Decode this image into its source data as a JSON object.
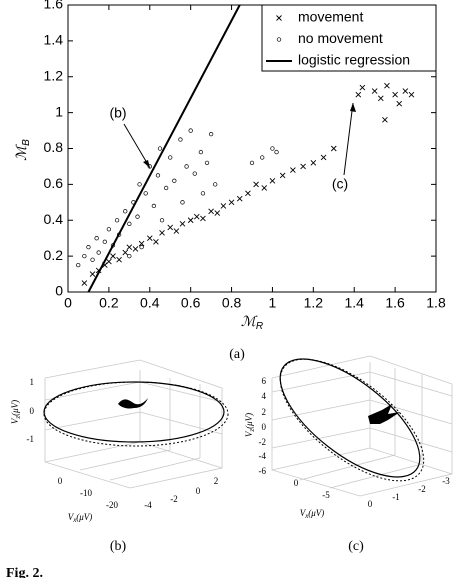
{
  "chart_data": {
    "type": "scatter",
    "x_label": {
      "symbol": "ℳ",
      "subscript": "R"
    },
    "y_label": {
      "symbol": "ℳ",
      "subscript": "B"
    },
    "xlim": [
      0,
      1.8
    ],
    "ylim": [
      0,
      1.6
    ],
    "xticks": [
      0,
      0.2,
      0.4,
      0.6,
      0.8,
      1,
      1.2,
      1.4,
      1.6,
      1.8
    ],
    "yticks": [
      0,
      0.2,
      0.4,
      0.6,
      0.8,
      1,
      1.2,
      1.4,
      1.6
    ],
    "grid": false,
    "legend": "upper right",
    "annotations": [
      "(b)",
      "(c)"
    ],
    "series": [
      {
        "name": "movement",
        "marker": "x",
        "color": "#000000",
        "x": [
          0.08,
          0.12,
          0.15,
          0.18,
          0.2,
          0.22,
          0.25,
          0.28,
          0.3,
          0.33,
          0.36,
          0.4,
          0.43,
          0.46,
          0.5,
          0.53,
          0.56,
          0.6,
          0.63,
          0.66,
          0.7,
          0.73,
          0.76,
          0.8,
          0.84,
          0.88,
          0.92,
          0.96,
          1.0,
          1.05,
          1.1,
          1.15,
          1.2,
          1.25,
          1.3,
          1.42,
          1.44,
          1.5,
          1.53,
          1.56,
          1.6,
          1.62,
          1.65,
          1.68,
          1.55
        ],
        "values": [
          0.05,
          0.1,
          0.12,
          0.15,
          0.17,
          0.2,
          0.18,
          0.22,
          0.25,
          0.24,
          0.27,
          0.3,
          0.28,
          0.33,
          0.36,
          0.34,
          0.38,
          0.4,
          0.42,
          0.41,
          0.45,
          0.44,
          0.48,
          0.5,
          0.52,
          0.55,
          0.6,
          0.58,
          0.62,
          0.65,
          0.68,
          0.7,
          0.72,
          0.75,
          0.8,
          1.1,
          1.14,
          1.12,
          1.08,
          1.15,
          1.1,
          1.05,
          1.12,
          1.1,
          0.96
        ]
      },
      {
        "name": "no movement",
        "marker": "o",
        "color": "#000000",
        "x": [
          0.05,
          0.08,
          0.1,
          0.12,
          0.14,
          0.15,
          0.18,
          0.2,
          0.22,
          0.24,
          0.25,
          0.28,
          0.3,
          0.32,
          0.34,
          0.35,
          0.38,
          0.4,
          0.42,
          0.44,
          0.45,
          0.48,
          0.5,
          0.52,
          0.55,
          0.58,
          0.6,
          0.62,
          0.65,
          0.68,
          0.7,
          0.72,
          0.3,
          0.36,
          0.46,
          0.56,
          0.66,
          0.9,
          0.95,
          1.0,
          1.02
        ],
        "values": [
          0.15,
          0.2,
          0.25,
          0.18,
          0.3,
          0.22,
          0.28,
          0.35,
          0.26,
          0.4,
          0.32,
          0.45,
          0.38,
          0.5,
          0.42,
          0.6,
          0.55,
          0.7,
          0.48,
          0.65,
          0.8,
          0.58,
          0.75,
          0.62,
          0.85,
          0.7,
          0.9,
          0.66,
          0.78,
          0.72,
          0.88,
          0.6,
          0.2,
          0.25,
          0.4,
          0.5,
          0.55,
          0.72,
          0.75,
          0.8,
          0.78
        ]
      },
      {
        "name": "logistic regression",
        "marker": "line",
        "color": "#000000",
        "x": [
          0.1,
          0.84
        ],
        "values": [
          0,
          1.6
        ]
      }
    ]
  },
  "captions": {
    "a": "(a)",
    "b": "(b)",
    "c": "(c)",
    "figure": "Fig. 2."
  },
  "panel_b": {
    "z_ticks": [
      "1",
      "0",
      "-1"
    ],
    "x_ticks": [
      "0",
      "-10",
      "-20"
    ],
    "y_ticks": [
      "-4",
      "-2",
      "0",
      "2"
    ],
    "z_label": {
      "symbol": "V",
      "subscript": "z",
      "unit": "(μV)"
    },
    "x_label": {
      "symbol": "V",
      "subscript": "x",
      "unit": "(μV)"
    }
  },
  "panel_c": {
    "z_ticks": [
      "6",
      "4",
      "2",
      "0",
      "-2",
      "-4",
      "-6"
    ],
    "x_ticks": [
      "0",
      "-5"
    ],
    "y_ticks": [
      "0",
      "-1",
      "-2",
      "-3"
    ],
    "z_label": {
      "symbol": "V",
      "subscript": "z",
      "unit": "(μV)"
    },
    "x_label": {
      "symbol": "V",
      "subscript": "x",
      "unit": "(μV)"
    }
  }
}
